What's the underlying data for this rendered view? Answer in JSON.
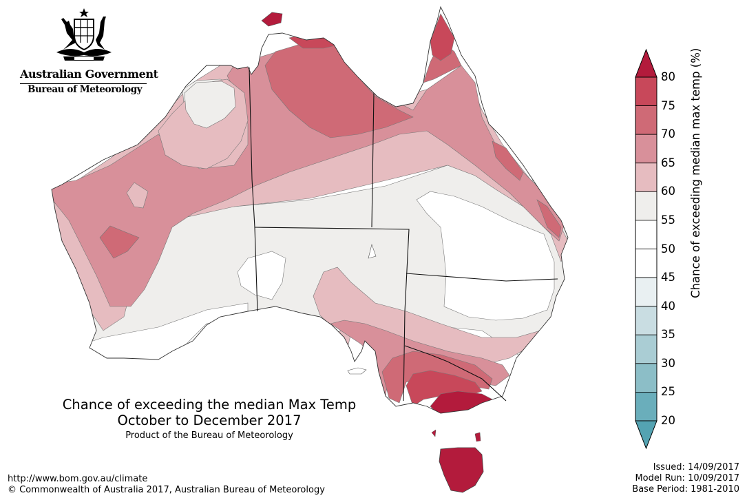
{
  "logo": {
    "government": "Australian Government",
    "bureau": "Bureau of Meteorology",
    "crest_icon": "coat-of-arms-icon"
  },
  "map": {
    "title": "Chance of exceeding the median Max Temp",
    "period": "October to December 2017",
    "product": "Product of the Bureau of Meteorology"
  },
  "legend": {
    "title": "Chance of exceeding median max temp (%)",
    "ticks": [
      "80",
      "75",
      "70",
      "65",
      "60",
      "55",
      "50",
      "45",
      "40",
      "35",
      "30",
      "25",
      "20"
    ],
    "colors": {
      "over_80": "#b31b3c",
      "75_80": "#c8485a",
      "70_75": "#cf6a76",
      "65_70": "#d8909a",
      "60_65": "#e6bcc0",
      "55_60": "#efeeec",
      "50_55": "#ffffff",
      "45_50": "#ffffff",
      "40_45": "#e9f0f2",
      "35_40": "#c9dde2",
      "30_35": "#aacdd4",
      "25_30": "#8cbec7",
      "20_25": "#6aaebb",
      "under_20": "#54a3b2"
    }
  },
  "footer": {
    "url": "http://www.bom.gov.au/climate",
    "copyright": "© Commonwealth of Australia 2017, Australian Bureau of Meteorology",
    "issued": "Issued: 14/09/2017",
    "model_run": "Model Run: 10/09/2017",
    "base_period": "Base Period: 1981-2010"
  }
}
